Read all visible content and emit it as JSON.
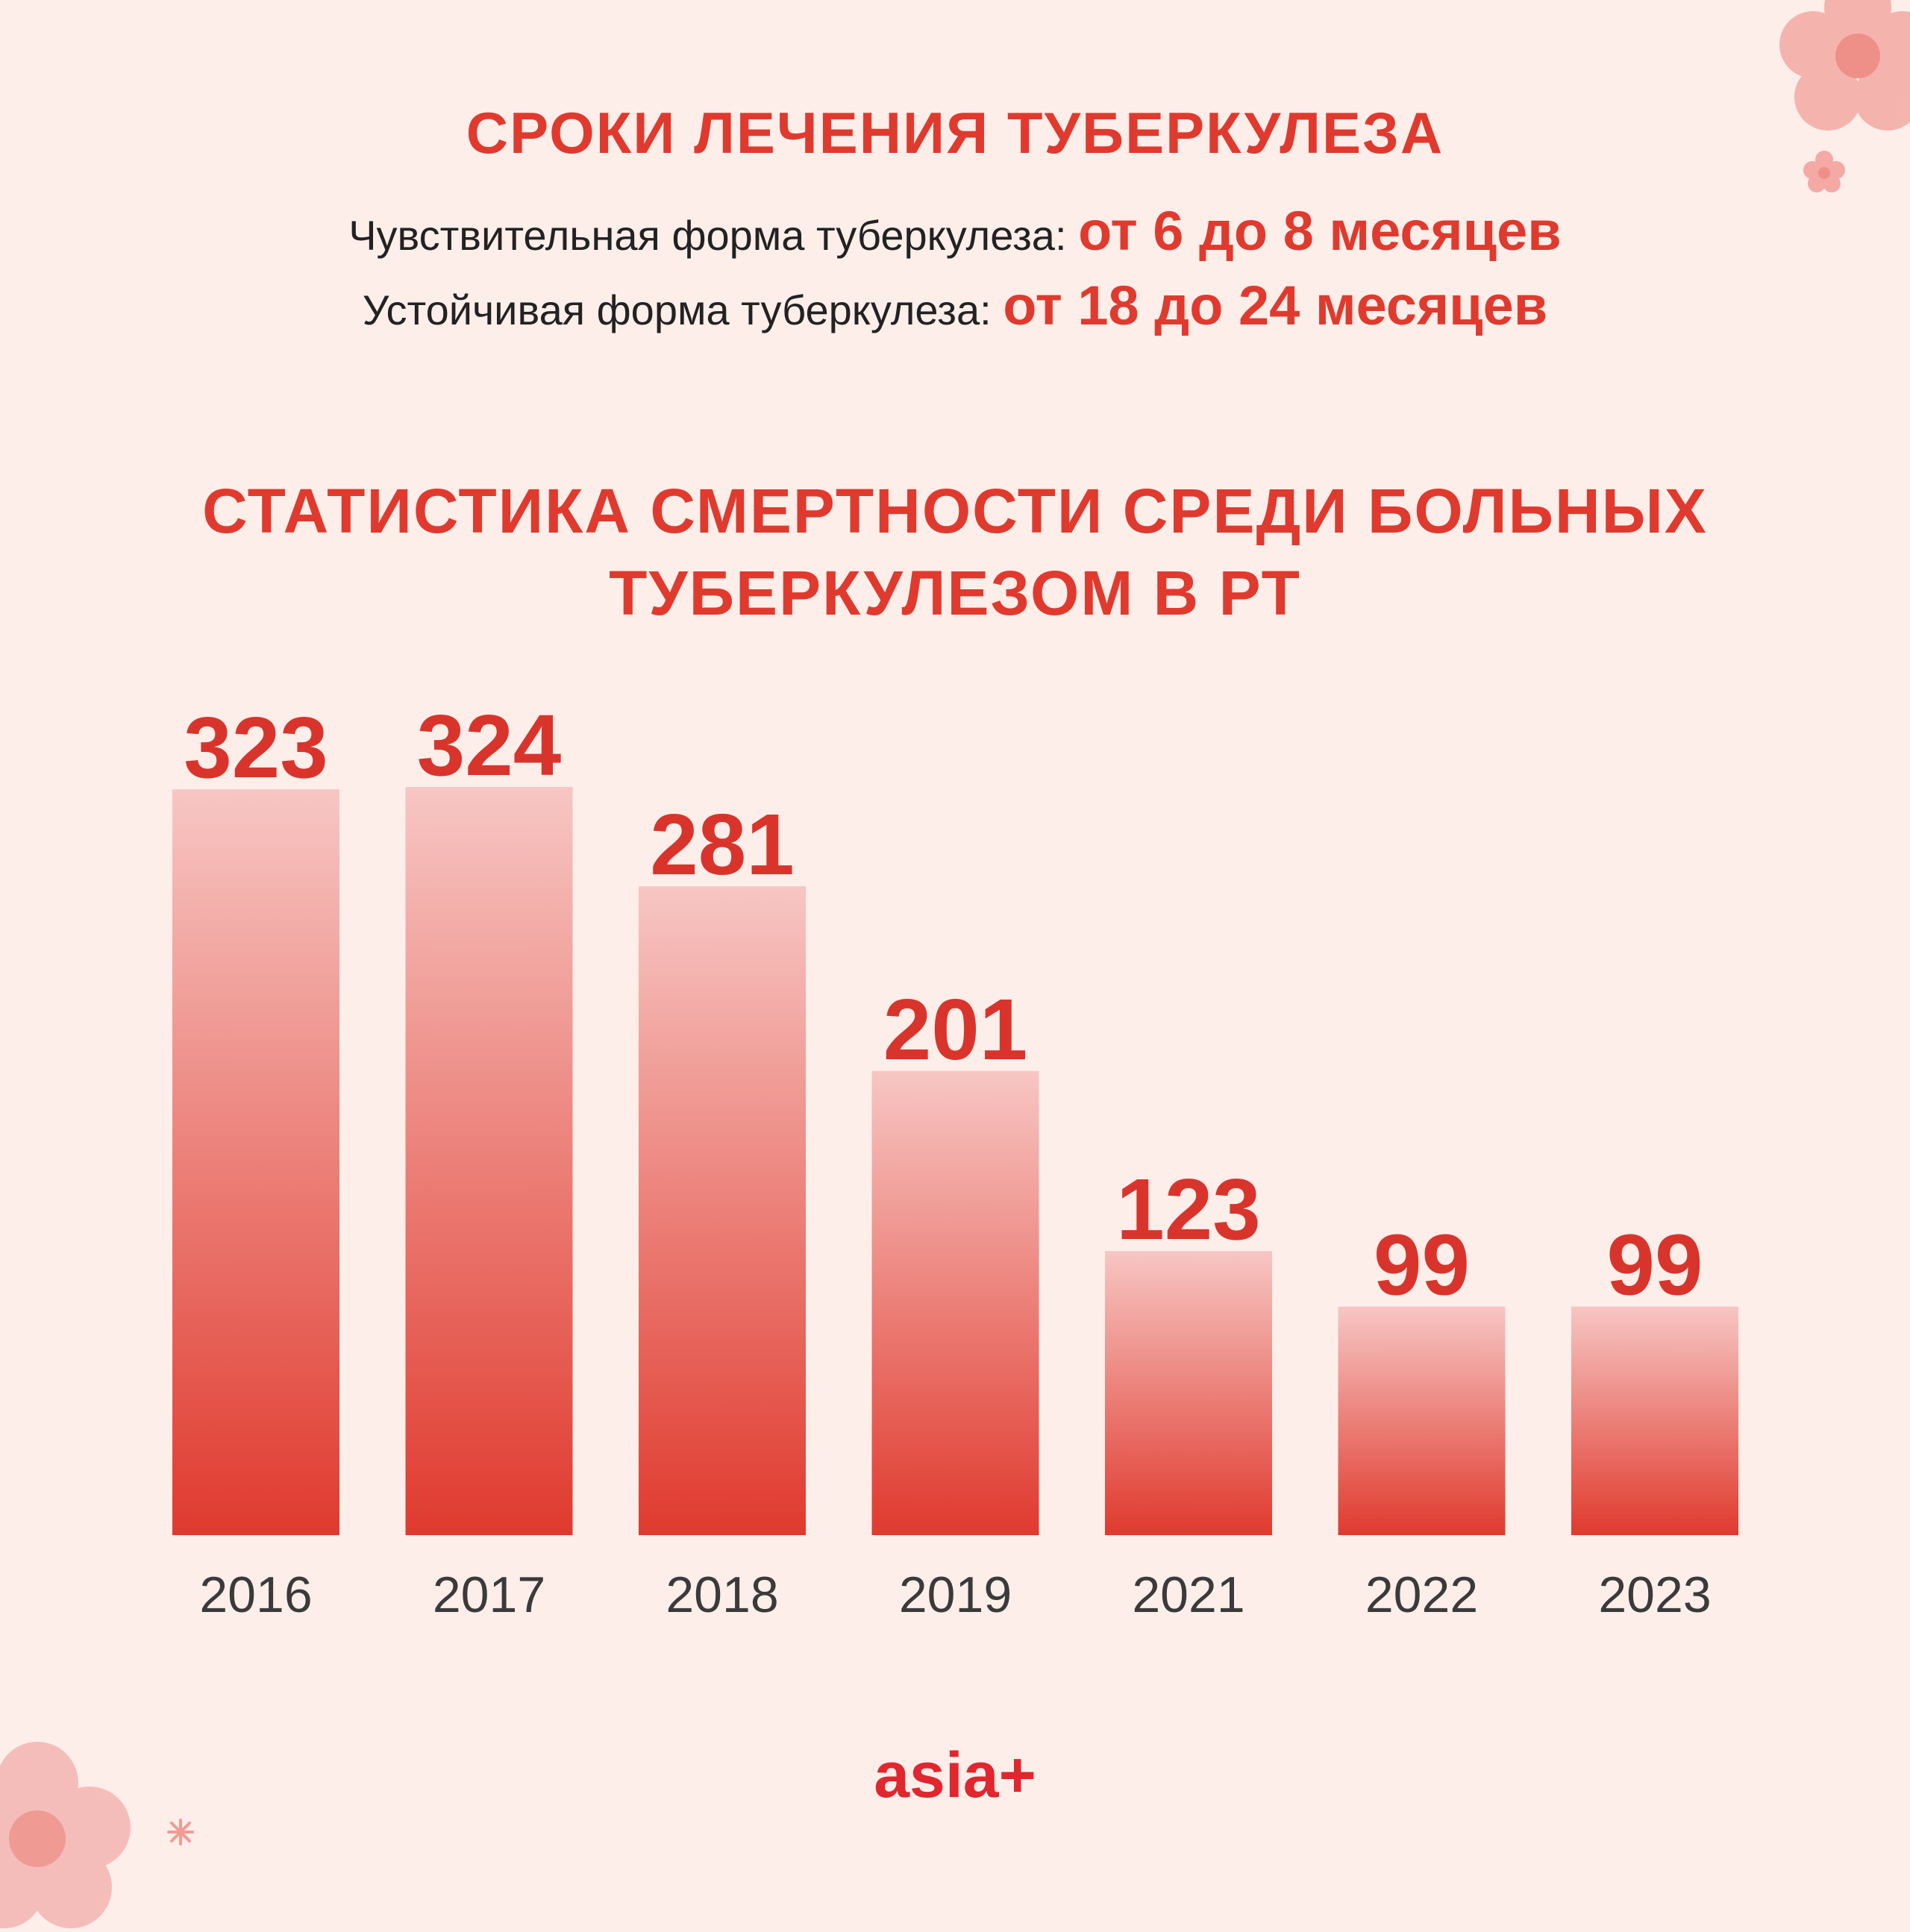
{
  "header": {
    "title": "СРОКИ ЛЕЧЕНИЯ ТУБЕРКУЛЕЗА",
    "durations": [
      {
        "label": "Чувствительная форма туберкулеза:",
        "value": "от 6 до 8 месяцев"
      },
      {
        "label": "Устойчивая форма туберкулеза:",
        "value": "от 18 до 24 месяцев"
      }
    ]
  },
  "chart_title": "СТАТИСТИКА СМЕРТНОСТИ СРЕДИ БОЛЬНЫХ ТУБЕРКУЛЕЗОМ В РТ",
  "chart_data": {
    "type": "bar",
    "title": "СТАТИСТИКА СМЕРТНОСТИ СРЕДИ БОЛЬНЫХ ТУБЕРКУЛЕЗОМ В РТ",
    "categories": [
      "2016",
      "2017",
      "2018",
      "2019",
      "2021",
      "2022",
      "2023"
    ],
    "values": [
      323,
      324,
      281,
      201,
      123,
      99,
      99
    ],
    "xlabel": "",
    "ylabel": "",
    "ylim": [
      0,
      324
    ],
    "grid": false,
    "legend": "none",
    "bar_color_top": "#f7c6c3",
    "bar_color_bottom": "#e03a2e",
    "label_color": "#d9342b",
    "tick_color": "#3a3a3a"
  },
  "brand": {
    "logo_text": "asia+",
    "logo_color": "#e0262e"
  },
  "colors": {
    "background": "#fdeeea",
    "accent": "#e03a2e"
  }
}
